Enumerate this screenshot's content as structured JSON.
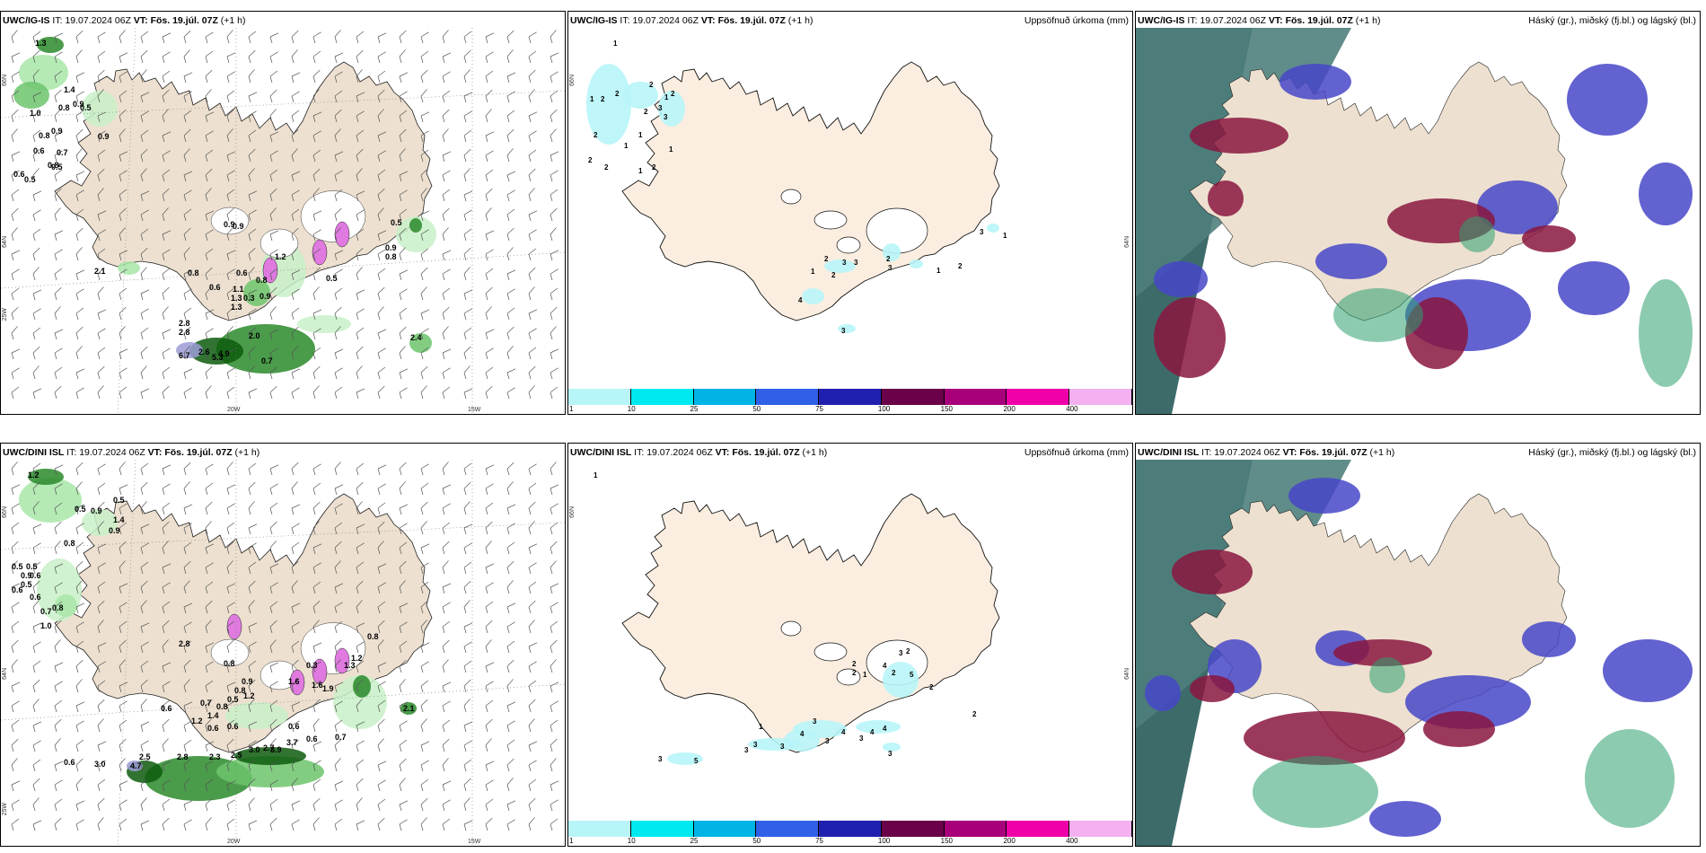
{
  "panels": {
    "p1": {
      "model": "UWC/IG-IS",
      "it_label": "IT:",
      "it": "19.07.2024 06Z",
      "vt_label": "VT:",
      "vt": "Fös. 19.júl. 07Z",
      "lead": "(+1 h)",
      "right": ""
    },
    "p2": {
      "model": "UWC/IG-IS",
      "it_label": "IT:",
      "it": "19.07.2024 06Z",
      "vt_label": "VT:",
      "vt": "Fös. 19.júl. 07Z",
      "lead": "(+1 h)",
      "right": "Uppsöfnuð úrkoma (mm)"
    },
    "p3": {
      "model": "UWC/IG-IS",
      "it_label": "IT:",
      "it": "19.07.2024 06Z",
      "vt_label": "VT:",
      "vt": "Fös. 19.júl. 07Z",
      "lead": "(+1 h)",
      "right": "Háský (gr.), miðský (fj.bl.) og lágský (bl.)"
    },
    "p4": {
      "model": "UWC/DINI ISL",
      "it_label": "IT:",
      "it": "19.07.2024 06Z",
      "vt_label": "VT:",
      "vt": "Fös. 19.júl. 07Z",
      "lead": "(+1 h)",
      "right": ""
    },
    "p5": {
      "model": "UWC/DINI ISL",
      "it_label": "IT:",
      "it": "19.07.2024 06Z",
      "vt_label": "VT:",
      "vt": "Fös. 19.júl. 07Z",
      "lead": "(+1 h)",
      "right": "Uppsöfnuð úrkoma (mm)"
    },
    "p6": {
      "model": "UWC/DINI ISL",
      "it_label": "IT:",
      "it": "19.07.2024 06Z",
      "vt_label": "VT:",
      "vt": "Fös. 19.júl. 07Z",
      "lead": "(+1 h)",
      "right": "Háský (gr.), miðský (fj.bl.) og lágský (bl.)"
    }
  },
  "axes": {
    "lat66": "66N",
    "lat64": "64N",
    "lon25": "25W",
    "lon20": "20W",
    "lon15": "15W"
  },
  "colorbar": {
    "labels": [
      "1",
      "10",
      "25",
      "50",
      "75",
      "100",
      "150",
      "200",
      "400"
    ],
    "colors": [
      "#b8f5f8",
      "#00e8f0",
      "#00b4e6",
      "#3060e8",
      "#2020b0",
      "#6a0048",
      "#a8007a",
      "#f000a8",
      "#f4b0f0"
    ]
  },
  "wind_values": {
    "p1": [
      [
        "1.3",
        38,
        10
      ],
      [
        "1.4",
        70,
        62
      ],
      [
        "1.0",
        32,
        88
      ],
      [
        "0.8",
        64,
        82
      ],
      [
        "0.9",
        80,
        78
      ],
      [
        "0.5",
        88,
        82
      ],
      [
        "0.8",
        42,
        113
      ],
      [
        "0.9",
        56,
        108
      ],
      [
        "0.9",
        108,
        114
      ],
      [
        "0.6",
        36,
        130
      ],
      [
        "0.7",
        62,
        132
      ],
      [
        "0.8",
        52,
        146
      ],
      [
        "0.5",
        56,
        148
      ],
      [
        "0.6",
        14,
        156
      ],
      [
        "0.5",
        26,
        162
      ],
      [
        "2.1",
        104,
        264
      ],
      [
        "0.8",
        208,
        266
      ],
      [
        "0.6",
        232,
        282
      ],
      [
        "1.1",
        258,
        284
      ],
      [
        "1.3",
        256,
        294
      ],
      [
        "0.3",
        270,
        294
      ],
      [
        "1.3",
        256,
        304
      ],
      [
        "0.9",
        288,
        292
      ],
      [
        "0.8",
        284,
        274
      ],
      [
        "0.6",
        262,
        266
      ],
      [
        "0.9",
        248,
        212
      ],
      [
        "0.9",
        258,
        214
      ],
      [
        "1.2",
        305,
        248
      ],
      [
        "0.5",
        362,
        272
      ],
      [
        "0.9",
        428,
        238
      ],
      [
        "0.8",
        428,
        248
      ],
      [
        "0.5",
        434,
        210
      ],
      [
        "2.8",
        198,
        322
      ],
      [
        "2.8",
        198,
        332
      ],
      [
        "6.7",
        198,
        358
      ],
      [
        "2.6",
        220,
        354
      ],
      [
        "5.3",
        235,
        360
      ],
      [
        "4.9",
        242,
        356
      ],
      [
        "2.0",
        276,
        336
      ],
      [
        "0.7",
        290,
        364
      ],
      [
        "2.4",
        456,
        338
      ]
    ],
    "p4": [
      [
        "1.2",
        30,
        10
      ],
      [
        "0.5",
        82,
        48
      ],
      [
        "0.5",
        125,
        38
      ],
      [
        "0.9",
        100,
        50
      ],
      [
        "1.4",
        125,
        60
      ],
      [
        "0.9",
        120,
        72
      ],
      [
        "0.8",
        70,
        86
      ],
      [
        "0.5",
        12,
        112
      ],
      [
        "0.5",
        28,
        112
      ],
      [
        "0.9",
        22,
        122
      ],
      [
        "0.6",
        32,
        122
      ],
      [
        "0.5",
        22,
        132
      ],
      [
        "0.6",
        12,
        138
      ],
      [
        "0.6",
        32,
        146
      ],
      [
        "0.7",
        44,
        162
      ],
      [
        "0.8",
        57,
        158
      ],
      [
        "1.0",
        44,
        178
      ],
      [
        "0.8",
        248,
        220
      ],
      [
        "2.8",
        198,
        198
      ],
      [
        "0.6",
        178,
        270
      ],
      [
        "0.7",
        222,
        264
      ],
      [
        "1.4",
        230,
        278
      ],
      [
        "0.8",
        240,
        268
      ],
      [
        "0.5",
        252,
        260
      ],
      [
        "0.8",
        260,
        250
      ],
      [
        "0.9",
        268,
        240
      ],
      [
        "1.2",
        270,
        256
      ],
      [
        "1.2",
        212,
        284
      ],
      [
        "0.6",
        230,
        292
      ],
      [
        "0.6",
        252,
        290
      ],
      [
        "0.6",
        320,
        290
      ],
      [
        "0.6",
        340,
        304
      ],
      [
        "0.7",
        372,
        302
      ],
      [
        "2.5",
        154,
        324
      ],
      [
        "3.0",
        104,
        332
      ],
      [
        "4.7",
        144,
        334
      ],
      [
        "2.8",
        196,
        324
      ],
      [
        "2.3",
        232,
        324
      ],
      [
        "2.5",
        256,
        322
      ],
      [
        "3.0",
        276,
        316
      ],
      [
        "2.7",
        292,
        314
      ],
      [
        "3.9",
        300,
        316
      ],
      [
        "3.7",
        318,
        308
      ],
      [
        "0.6",
        70,
        330
      ],
      [
        "0.8",
        408,
        190
      ],
      [
        "2.1",
        448,
        270
      ],
      [
        "0.3",
        340,
        222
      ],
      [
        "1.6",
        320,
        240
      ],
      [
        "1.6",
        346,
        244
      ],
      [
        "1.9",
        358,
        248
      ],
      [
        "1.3",
        382,
        222
      ],
      [
        "1.2",
        390,
        214
      ]
    ]
  },
  "precip_values": {
    "p2": [
      [
        "1",
        50,
        10
      ],
      [
        "1",
        24,
        72
      ],
      [
        "2",
        36,
        72
      ],
      [
        "2",
        52,
        66
      ],
      [
        "2",
        90,
        56
      ],
      [
        "1",
        107,
        70
      ],
      [
        "2",
        84,
        86
      ],
      [
        "2",
        28,
        112
      ],
      [
        "1",
        62,
        124
      ],
      [
        "1",
        78,
        112
      ],
      [
        "1",
        112,
        128
      ],
      [
        "2",
        22,
        140
      ],
      [
        "2",
        40,
        148
      ],
      [
        "1",
        78,
        152
      ],
      [
        "2",
        93,
        148
      ],
      [
        "3",
        106,
        92
      ],
      [
        "2",
        114,
        66
      ],
      [
        "3",
        100,
        82
      ],
      [
        "2",
        285,
        250
      ],
      [
        "2",
        293,
        268
      ],
      [
        "1",
        270,
        264
      ],
      [
        "3",
        305,
        254
      ],
      [
        "3",
        318,
        254
      ],
      [
        "2",
        354,
        250
      ],
      [
        "3",
        356,
        260
      ],
      [
        "1",
        410,
        263
      ],
      [
        "2",
        434,
        258
      ],
      [
        "3",
        458,
        220
      ],
      [
        "1",
        484,
        224
      ],
      [
        "4",
        256,
        296
      ],
      [
        "3",
        304,
        330
      ]
    ],
    "p5": [
      [
        "1",
        28,
        10
      ],
      [
        "2",
        316,
        220
      ],
      [
        "2",
        316,
        230
      ],
      [
        "1",
        328,
        232
      ],
      [
        "4",
        350,
        222
      ],
      [
        "2",
        360,
        230
      ],
      [
        "3",
        368,
        208
      ],
      [
        "2",
        376,
        206
      ],
      [
        "5",
        380,
        232
      ],
      [
        "2",
        402,
        246
      ],
      [
        "2",
        450,
        276
      ],
      [
        "1",
        212,
        290
      ],
      [
        "3",
        272,
        284
      ],
      [
        "3",
        286,
        306
      ],
      [
        "3",
        324,
        303
      ],
      [
        "4",
        336,
        296
      ],
      [
        "4",
        350,
        292
      ],
      [
        "4",
        258,
        298
      ],
      [
        "3",
        236,
        312
      ],
      [
        "3",
        206,
        310
      ],
      [
        "3",
        196,
        316
      ],
      [
        "4",
        304,
        296
      ],
      [
        "3",
        100,
        326
      ],
      [
        "5",
        140,
        328
      ],
      [
        "3",
        356,
        320
      ]
    ]
  }
}
